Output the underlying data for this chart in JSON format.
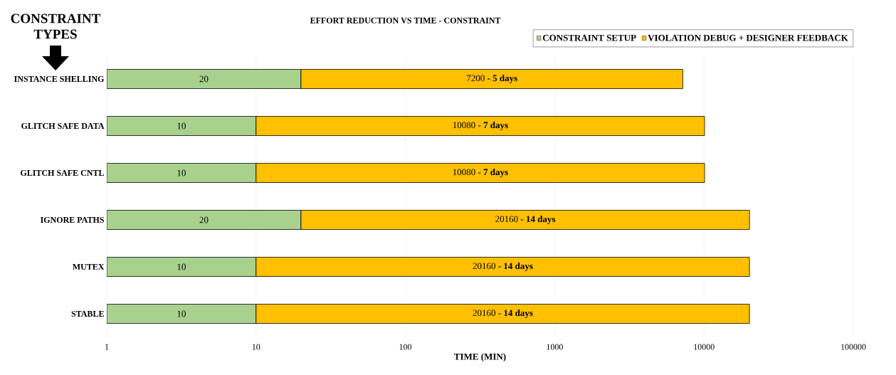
{
  "chart_data": {
    "type": "bar",
    "orientation": "horizontal",
    "stacked": true,
    "log": "x",
    "grid": "x",
    "legend": "top right",
    "title": "EFFORT REDUCTION VS TIME - CONSTRAINT",
    "xlabel": "TIME (MIN)",
    "ylabel": "CONSTRAINT TYPES",
    "categories": [
      "INSTANCE SHELLING",
      "GLITCH SAFE DATA",
      "GLITCH SAFE CNTL",
      "IGNORE PATHS",
      "MUTEX",
      "STABLE"
    ],
    "xlim": [
      1,
      100000
    ],
    "xticks": [
      1,
      10,
      100,
      1000,
      10000,
      100000
    ],
    "series": [
      {
        "name": "CONSTRAINT SETUP",
        "color": "#a9d18e",
        "values": [
          20,
          10,
          10,
          20,
          10,
          10
        ],
        "value_labels": [
          "20",
          "10",
          "10",
          "20",
          "10",
          "10"
        ]
      },
      {
        "name": "VIOLATION DEBUG + DESIGNER FEEDBACK",
        "color": "#ffc000",
        "values": [
          7200,
          10080,
          10080,
          20160,
          20160,
          20160
        ],
        "value_labels": [
          "7200 **- 5 days**",
          "10080 **- 7 days**",
          "10080 **- 7 days**",
          "20160 **- 14 days**",
          "20160 **- 14 days**",
          "20160 **- 14 days**"
        ]
      }
    ]
  }
}
